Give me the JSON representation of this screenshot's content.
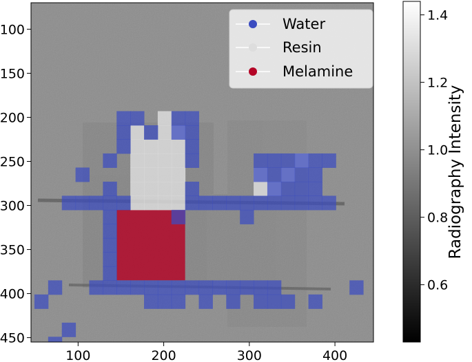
{
  "chart_data": {
    "type": "heatmap",
    "title": "",
    "xlabel": "",
    "ylabel": "",
    "xlim": [
      45,
      445
    ],
    "ylim": [
      455,
      70
    ],
    "xticks": [
      100,
      200,
      300,
      400
    ],
    "yticks": [
      100,
      150,
      200,
      250,
      300,
      350,
      400,
      450
    ],
    "grid": false,
    "background": {
      "description_colormap": "gray",
      "frame_level": 0.86
    },
    "colorbar": {
      "label": "Radiography Intensity",
      "ticks": [
        "0.6",
        "0.8",
        "1.0",
        "1.2",
        "1.4"
      ],
      "tick_values": [
        0.6,
        0.8,
        1.0,
        1.2,
        1.4
      ],
      "range": [
        0.43,
        1.44
      ]
    },
    "legend": {
      "position": "upper-right",
      "entries": [
        {
          "label": "Water",
          "color": "#3b4cc0"
        },
        {
          "label": "Resin",
          "color": "#dddddd"
        },
        {
          "label": "Melamine",
          "color": "#b40426"
        }
      ]
    },
    "classes": {
      "water_color": "#3b4cc0",
      "resin_color": "#dcdcdc",
      "melamine_color": "#b40426",
      "cell_size": 16,
      "water_cells": [
        [
          145,
          193
        ],
        [
          161,
          193
        ],
        [
          209,
          193
        ],
        [
          225,
          193
        ],
        [
          145,
          209
        ],
        [
          177,
          209
        ],
        [
          209,
          209
        ],
        [
          225,
          209
        ],
        [
          145,
          225
        ],
        [
          225,
          225
        ],
        [
          129,
          241
        ],
        [
          225,
          241
        ],
        [
          305,
          241
        ],
        [
          321,
          241
        ],
        [
          337,
          241
        ],
        [
          353,
          241
        ],
        [
          369,
          241
        ],
        [
          385,
          241
        ],
        [
          97,
          257
        ],
        [
          305,
          257
        ],
        [
          321,
          257
        ],
        [
          337,
          257
        ],
        [
          353,
          257
        ],
        [
          369,
          257
        ],
        [
          129,
          273
        ],
        [
          225,
          273
        ],
        [
          321,
          273
        ],
        [
          337,
          273
        ],
        [
          353,
          273
        ],
        [
          369,
          273
        ],
        [
          81,
          289
        ],
        [
          97,
          289
        ],
        [
          113,
          289
        ],
        [
          129,
          289
        ],
        [
          145,
          289
        ],
        [
          225,
          289
        ],
        [
          241,
          289
        ],
        [
          257,
          289
        ],
        [
          273,
          289
        ],
        [
          289,
          289
        ],
        [
          305,
          289
        ],
        [
          321,
          289
        ],
        [
          337,
          289
        ],
        [
          353,
          289
        ],
        [
          369,
          289
        ],
        [
          385,
          289
        ],
        [
          129,
          305
        ],
        [
          209,
          305
        ],
        [
          289,
          305
        ],
        [
          129,
          321
        ],
        [
          129,
          337
        ],
        [
          129,
          353
        ],
        [
          129,
          369
        ],
        [
          113,
          385
        ],
        [
          129,
          385
        ],
        [
          145,
          385
        ],
        [
          161,
          385
        ],
        [
          177,
          385
        ],
        [
          193,
          385
        ],
        [
          209,
          385
        ],
        [
          225,
          385
        ],
        [
          241,
          385
        ],
        [
          257,
          385
        ],
        [
          273,
          385
        ],
        [
          289,
          385
        ],
        [
          305,
          385
        ],
        [
          321,
          385
        ],
        [
          65,
          385
        ],
        [
          417,
          385
        ],
        [
          49,
          401
        ],
        [
          177,
          401
        ],
        [
          193,
          401
        ],
        [
          209,
          401
        ],
        [
          241,
          401
        ],
        [
          273,
          401
        ],
        [
          305,
          401
        ],
        [
          321,
          401
        ],
        [
          337,
          401
        ],
        [
          369,
          401
        ],
        [
          81,
          433
        ],
        [
          65,
          449
        ]
      ],
      "resin_cells": [
        [
          193,
          193
        ],
        [
          161,
          209
        ],
        [
          193,
          209
        ],
        [
          209,
          209
        ],
        [
          161,
          225
        ],
        [
          177,
          225
        ],
        [
          193,
          225
        ],
        [
          209,
          225
        ],
        [
          161,
          241
        ],
        [
          177,
          241
        ],
        [
          193,
          241
        ],
        [
          209,
          241
        ],
        [
          353,
          241
        ],
        [
          161,
          257
        ],
        [
          177,
          257
        ],
        [
          193,
          257
        ],
        [
          209,
          257
        ],
        [
          305,
          257
        ],
        [
          337,
          257
        ],
        [
          161,
          273
        ],
        [
          177,
          273
        ],
        [
          193,
          273
        ],
        [
          209,
          273
        ],
        [
          305,
          273
        ],
        [
          321,
          273
        ],
        [
          161,
          289
        ],
        [
          177,
          289
        ],
        [
          193,
          289
        ],
        [
          209,
          289
        ]
      ],
      "melamine_region": {
        "x": [
          145,
          225
        ],
        "y": [
          305,
          385
        ]
      }
    }
  }
}
